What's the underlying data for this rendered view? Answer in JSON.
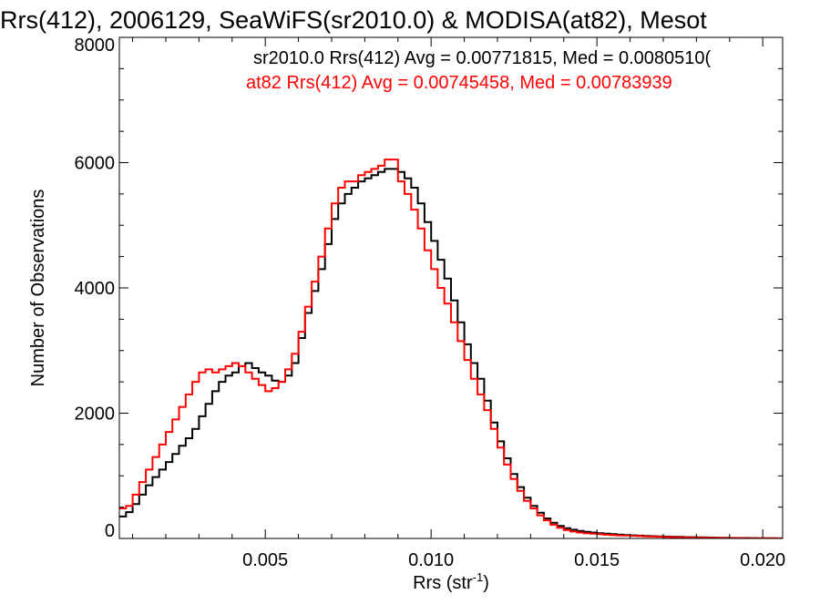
{
  "chart_data": {
    "type": "line",
    "title": "Rrs(412), 2006129, SeaWiFS(sr2010.0) & MODISA(at82), Mesot",
    "xlabel": "Rrs (str",
    "xlabel_sup": "-1",
    "xlabel_close": ")",
    "ylabel": "Number of Observations",
    "xlim": [
      0.0006,
      0.0206
    ],
    "ylim": [
      0,
      8000
    ],
    "xticks": [
      {
        "value": 0.005,
        "label": "0.005"
      },
      {
        "value": 0.01,
        "label": "0.010"
      },
      {
        "value": 0.015,
        "label": "0.015"
      },
      {
        "value": 0.02,
        "label": "0.020"
      }
    ],
    "yticks": [
      {
        "value": 0,
        "label": "0"
      },
      {
        "value": 2000,
        "label": "2000"
      },
      {
        "value": 4000,
        "label": "4000"
      },
      {
        "value": 6000,
        "label": "6000"
      },
      {
        "value": 8000,
        "label": "8000"
      }
    ],
    "grid": false,
    "legend_position": "top-right",
    "legend": [
      {
        "text": "sr2010.0 Rrs(412) Avg = 0.00771815, Med = 0.0080510(",
        "color": "#000000"
      },
      {
        "text": "at82 Rrs(412) Avg = 0.00745458, Med = 0.00783939",
        "color": "#ff0000"
      }
    ],
    "series": [
      {
        "color": "#000000",
        "x": [
          0.0006,
          0.0008,
          0.001,
          0.0012,
          0.0014,
          0.0016,
          0.0018,
          0.002,
          0.0022,
          0.0024,
          0.0026,
          0.0028,
          0.003,
          0.0032,
          0.0034,
          0.0036,
          0.0038,
          0.004,
          0.0042,
          0.0044,
          0.0046,
          0.0048,
          0.005,
          0.0052,
          0.0054,
          0.0056,
          0.0058,
          0.006,
          0.0062,
          0.0064,
          0.0066,
          0.0068,
          0.007,
          0.0072,
          0.0074,
          0.0076,
          0.0078,
          0.008,
          0.0082,
          0.0084,
          0.0086,
          0.0088,
          0.009,
          0.0092,
          0.0094,
          0.0096,
          0.0098,
          0.01,
          0.0102,
          0.0104,
          0.0106,
          0.0108,
          0.011,
          0.0112,
          0.0114,
          0.0116,
          0.0118,
          0.012,
          0.0122,
          0.0124,
          0.0126,
          0.0128,
          0.013,
          0.0132,
          0.0134,
          0.0136,
          0.0138,
          0.014,
          0.0142,
          0.0144,
          0.0146,
          0.0148,
          0.015,
          0.0152,
          0.0154,
          0.0156,
          0.0158,
          0.016,
          0.0162,
          0.0164,
          0.0166,
          0.0168,
          0.017,
          0.0172,
          0.0174,
          0.0176,
          0.0178,
          0.018,
          0.0182,
          0.0184,
          0.0186,
          0.0188,
          0.019,
          0.0192,
          0.0194,
          0.0196,
          0.0198,
          0.02,
          0.0202,
          0.0204,
          0.0206
        ],
        "y": [
          350,
          420,
          550,
          700,
          850,
          980,
          1100,
          1220,
          1350,
          1480,
          1600,
          1750,
          1950,
          2150,
          2350,
          2500,
          2600,
          2650,
          2750,
          2800,
          2720,
          2650,
          2600,
          2520,
          2500,
          2600,
          2800,
          3200,
          3600,
          3950,
          4300,
          4700,
          5100,
          5350,
          5500,
          5600,
          5700,
          5750,
          5800,
          5850,
          5900,
          5900,
          5850,
          5750,
          5600,
          5350,
          5050,
          4750,
          4450,
          4150,
          3800,
          3450,
          3100,
          2800,
          2550,
          2200,
          1850,
          1550,
          1280,
          1030,
          820,
          650,
          520,
          410,
          320,
          250,
          200,
          165,
          140,
          120,
          105,
          95,
          85,
          75,
          68,
          62,
          55,
          50,
          45,
          40,
          36,
          33,
          30,
          27,
          25,
          22,
          20,
          18,
          16,
          14,
          12,
          10,
          9,
          8,
          7,
          6,
          5,
          4,
          3,
          2,
          2
        ]
      },
      {
        "color": "#ff0000",
        "x": [
          0.0006,
          0.0008,
          0.001,
          0.0012,
          0.0014,
          0.0016,
          0.0018,
          0.002,
          0.0022,
          0.0024,
          0.0026,
          0.0028,
          0.003,
          0.0032,
          0.0034,
          0.0036,
          0.0038,
          0.004,
          0.0042,
          0.0044,
          0.0046,
          0.0048,
          0.005,
          0.0052,
          0.0054,
          0.0056,
          0.0058,
          0.006,
          0.0062,
          0.0064,
          0.0066,
          0.0068,
          0.007,
          0.0072,
          0.0074,
          0.0076,
          0.0078,
          0.008,
          0.0082,
          0.0084,
          0.0086,
          0.0088,
          0.009,
          0.0092,
          0.0094,
          0.0096,
          0.0098,
          0.01,
          0.0102,
          0.0104,
          0.0106,
          0.0108,
          0.011,
          0.0112,
          0.0114,
          0.0116,
          0.0118,
          0.012,
          0.0122,
          0.0124,
          0.0126,
          0.0128,
          0.013,
          0.0132,
          0.0134,
          0.0136,
          0.0138,
          0.014,
          0.0142,
          0.0144,
          0.0146,
          0.0148,
          0.015,
          0.0152,
          0.0154,
          0.0156,
          0.0158,
          0.016,
          0.0162,
          0.0164,
          0.0166,
          0.0168,
          0.017,
          0.0172,
          0.0174,
          0.0176,
          0.0178,
          0.018,
          0.0182,
          0.0184,
          0.0186,
          0.0188,
          0.019,
          0.0192,
          0.0194,
          0.0196,
          0.0198,
          0.02,
          0.0202,
          0.0204,
          0.0206
        ],
        "y": [
          480,
          520,
          700,
          900,
          1100,
          1300,
          1500,
          1700,
          1900,
          2100,
          2300,
          2500,
          2650,
          2700,
          2650,
          2700,
          2750,
          2800,
          2750,
          2650,
          2550,
          2450,
          2350,
          2400,
          2500,
          2700,
          2950,
          3300,
          3700,
          4100,
          4500,
          4950,
          5350,
          5600,
          5700,
          5700,
          5800,
          5850,
          5900,
          5950,
          6050,
          6050,
          5700,
          5500,
          5250,
          4950,
          4600,
          4300,
          4000,
          3750,
          3450,
          3150,
          2850,
          2550,
          2300,
          2050,
          1750,
          1450,
          1180,
          950,
          760,
          600,
          480,
          370,
          290,
          220,
          170,
          135,
          110,
          95,
          85,
          75,
          68,
          60,
          55,
          50,
          46,
          42,
          38,
          34,
          30,
          27,
          24,
          21,
          19,
          17,
          15,
          13,
          11,
          10,
          9,
          8,
          7,
          6,
          5,
          4,
          4,
          3,
          3,
          2,
          2
        ]
      }
    ]
  }
}
